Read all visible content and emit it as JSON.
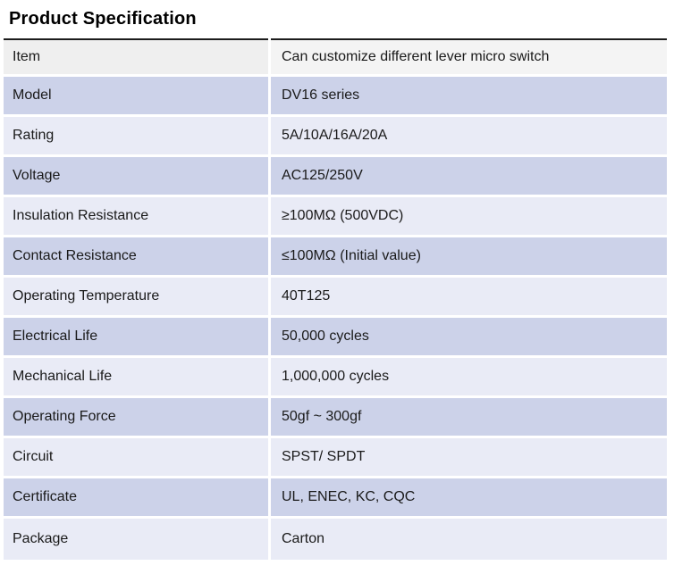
{
  "page": {
    "title": "Product Specification"
  },
  "colors": {
    "row_dark_bg": "#ccd2e9",
    "row_light_bg": "#e9ebf6",
    "row_first_label_bg": "#efefef",
    "row_first_value_bg": "#f4f4f4",
    "top_border": "#1c1c1c",
    "text": "#1a1a1a"
  },
  "table": {
    "rows": [
      {
        "label": "Item",
        "value": "Can customize different lever micro switch"
      },
      {
        "label": "Model",
        "value": "DV16 series"
      },
      {
        "label": "Rating",
        "value": "5A/10A/16A/20A"
      },
      {
        "label": "Voltage",
        "value": "AC125/250V"
      },
      {
        "label": "Insulation Resistance",
        "value": "≥100MΩ (500VDC)"
      },
      {
        "label": "Contact Resistance",
        "value": "≤100MΩ (Initial value)"
      },
      {
        "label": "Operating Temperature",
        "value": "40T125"
      },
      {
        "label": "Electrical Life",
        "value": "50,000 cycles"
      },
      {
        "label": "Mechanical Life",
        "value": "1,000,000 cycles"
      },
      {
        "label": "Operating Force",
        "value": "50gf ~ 300gf"
      },
      {
        "label": "Circuit",
        "value": "SPST/ SPDT"
      },
      {
        "label": "Certificate",
        "value": "UL, ENEC, KC, CQC"
      },
      {
        "label": "Package",
        "value": "Carton"
      }
    ]
  }
}
